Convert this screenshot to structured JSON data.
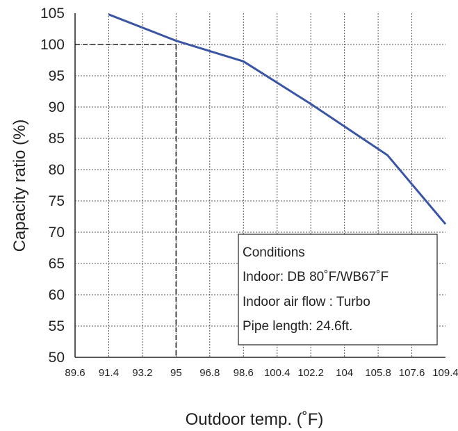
{
  "chart_data": {
    "type": "line",
    "xlabel": "Outdoor temp. (˚F)",
    "ylabel": "Capacity ratio (%)",
    "x_ticks": [
      "89.6",
      "91.4",
      "93.2",
      "95",
      "96.8",
      "98.6",
      "100.4",
      "102.2",
      "104",
      "105.8",
      "107.6",
      "109.4"
    ],
    "y_ticks": [
      "50",
      "55",
      "60",
      "65",
      "70",
      "75",
      "80",
      "85",
      "90",
      "95",
      "100",
      "105"
    ],
    "xlim": [
      89.6,
      109.4
    ],
    "ylim": [
      50,
      105
    ],
    "grid": true,
    "series": [
      {
        "color": "#3a55a4",
        "x": [
          91.4,
          95,
          98.6,
          102.2,
          106.3,
          109.4
        ],
        "y": [
          104.8,
          100.6,
          97.3,
          90.5,
          82.3,
          71.3
        ]
      }
    ],
    "reference": {
      "x": 95,
      "y": 100
    },
    "conditions": {
      "title": "Conditions",
      "lines": [
        "Indoor: DB 80˚F/WB67˚F",
        "Indoor air flow : Turbo",
        "Pipe length: 24.6ft."
      ]
    }
  }
}
